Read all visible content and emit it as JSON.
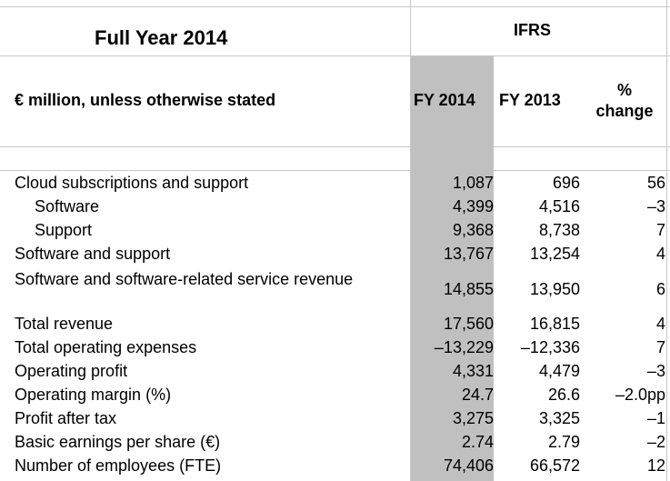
{
  "header": {
    "title": "Full Year 2014",
    "standard": "IFRS",
    "units_label": "€ million, unless otherwise stated",
    "col_fy2014": "FY 2014",
    "col_fy2013": "FY 2013",
    "col_change": "% change"
  },
  "rows": [
    {
      "label": "Cloud subscriptions and support",
      "fy2014": "1,087",
      "fy2013": "696",
      "change": "56"
    },
    {
      "label": "Software",
      "fy2014": "4,399",
      "fy2013": "4,516",
      "change": "–3"
    },
    {
      "label": "Support",
      "fy2014": "9,368",
      "fy2013": "8,738",
      "change": "7"
    },
    {
      "label": "Software and support",
      "fy2014": "13,767",
      "fy2013": "13,254",
      "change": "4"
    },
    {
      "label": "Software and software-related service revenue",
      "fy2014": "14,855",
      "fy2013": "13,950",
      "change": "6"
    },
    {
      "label": "Total revenue",
      "fy2014": "17,560",
      "fy2013": "16,815",
      "change": "4"
    },
    {
      "label": "Total operating expenses",
      "fy2014": "–13,229",
      "fy2013": "–12,336",
      "change": "7"
    },
    {
      "label": "Operating profit",
      "fy2014": "4,331",
      "fy2013": "4,479",
      "change": "–3"
    },
    {
      "label": "Operating margin (%)",
      "fy2014": "24.7",
      "fy2013": "26.6",
      "change": "–2.0pp"
    },
    {
      "label": "Profit after tax",
      "fy2014": "3,275",
      "fy2013": "3,325",
      "change": "–1"
    },
    {
      "label": "Basic earnings per share (€)",
      "fy2014": "2.74",
      "fy2013": "2.79",
      "change": "–2"
    },
    {
      "label": "Number of employees (FTE)",
      "fy2014": "74,406",
      "fy2013": "66,572",
      "change": "12"
    }
  ]
}
